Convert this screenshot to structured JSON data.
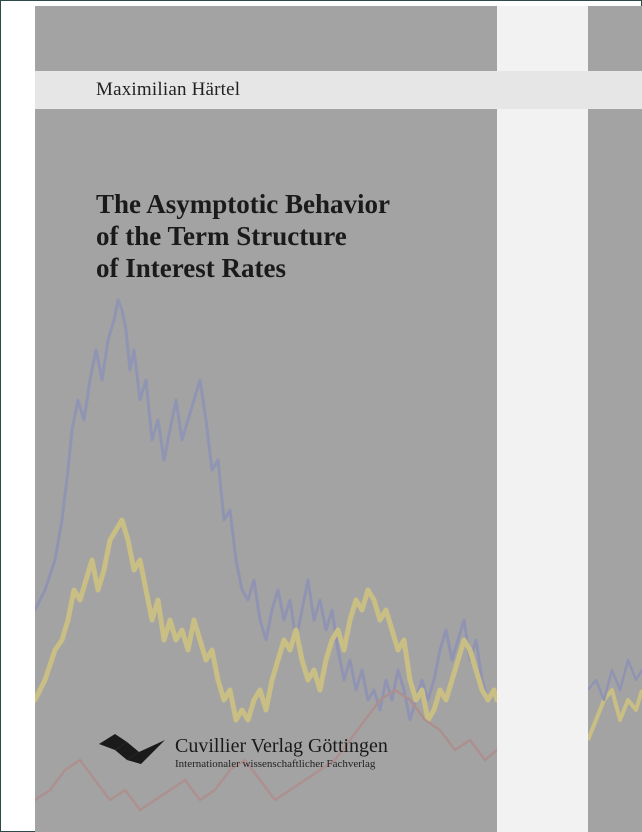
{
  "author": "Maximilian Härtel",
  "title_lines": [
    "The Asymptotic Behavior",
    "of the Term Structure",
    "of Interest Rates"
  ],
  "publisher": {
    "name": "Cuvillier Verlag Göttingen",
    "tagline": "Internationaler wissenschaftlicher Fachverlag"
  },
  "colors": {
    "cover_gray": "#a3a3a3",
    "spine": "#f2f2f2",
    "band": "#e6e6e6",
    "blue_line": "#8a90b8",
    "yellow_line": "#d6c77a",
    "red_line": "#b08a8a"
  }
}
